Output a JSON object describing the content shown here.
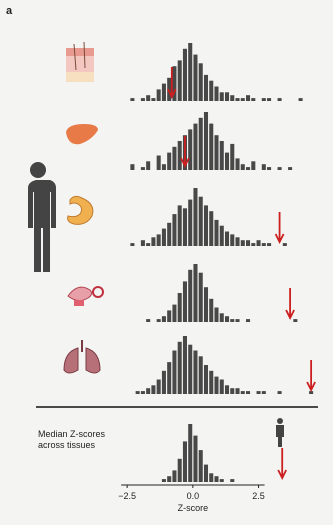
{
  "chart_data": {
    "type": "histogram",
    "panel_label": "a",
    "bins": [
      -2.8,
      -2.6,
      -2.4,
      -2.2,
      -2,
      -1.8,
      -1.6,
      -1.4,
      -1.2,
      -1,
      -0.8,
      -0.6,
      -0.4,
      -0.2,
      0,
      0.2,
      0.4,
      0.6,
      0.8,
      1,
      1.2,
      1.4,
      1.6,
      1.8,
      2,
      2.2,
      2.4,
      2.6,
      2.8,
      3,
      3.2,
      3.4,
      3.6,
      3.8,
      4,
      4.2,
      4.4,
      4.6,
      4.8
    ],
    "xlim": [
      -3,
      4.8
    ],
    "xticks": [
      {
        "value": -2.5,
        "label": "−2.5"
      },
      {
        "value": 0,
        "label": "0.0"
      },
      2.5
    ],
    "xlabel": "Z-score",
    "ylim": [
      0,
      20
    ],
    "color": "#484848",
    "marker_color": "#cc1f1f",
    "panels": [
      {
        "values": [
          0,
          0,
          1,
          0,
          1,
          2,
          1,
          4,
          6,
          8,
          12,
          14,
          18,
          20,
          16,
          13,
          9,
          7,
          5,
          3,
          3,
          2,
          1,
          1,
          2,
          1,
          0,
          1,
          1,
          0,
          1,
          0,
          0,
          0,
          1,
          0,
          0,
          0
        ],
        "marker": -0.8
      },
      {
        "values": [
          0,
          0,
          2,
          0,
          1,
          3,
          0,
          5,
          2,
          6,
          8,
          10,
          12,
          14,
          16,
          18,
          20,
          16,
          12,
          10,
          6,
          9,
          4,
          2,
          1,
          3,
          0,
          2,
          1,
          0,
          1,
          0,
          1,
          0,
          0,
          0,
          0,
          0
        ],
        "marker": -0.3
      },
      {
        "values": [
          0,
          0,
          1,
          0,
          2,
          1,
          3,
          4,
          6,
          8,
          11,
          14,
          13,
          16,
          20,
          17,
          14,
          12,
          9,
          7,
          5,
          4,
          3,
          2,
          2,
          1,
          2,
          1,
          1,
          0,
          0,
          1,
          0,
          0,
          0,
          0,
          0,
          0
        ],
        "marker": 3.3
      },
      {
        "values": [
          0,
          0,
          0,
          0,
          0,
          1,
          0,
          1,
          2,
          4,
          6,
          10,
          14,
          18,
          20,
          17,
          12,
          8,
          5,
          3,
          2,
          1,
          1,
          0,
          1,
          0,
          0,
          0,
          0,
          0,
          0,
          0,
          0,
          1,
          0,
          0,
          0,
          0
        ],
        "marker": 3.7
      },
      {
        "values": [
          0,
          0,
          0,
          1,
          1,
          2,
          3,
          5,
          8,
          11,
          15,
          18,
          20,
          17,
          15,
          13,
          10,
          8,
          6,
          5,
          3,
          2,
          2,
          1,
          1,
          0,
          1,
          1,
          0,
          0,
          1,
          0,
          0,
          0,
          0,
          0,
          1,
          0
        ],
        "marker": 4.5
      },
      {
        "values": [
          0,
          0,
          0,
          0,
          0,
          0,
          0,
          0,
          1,
          2,
          4,
          8,
          14,
          20,
          16,
          11,
          6,
          3,
          2,
          1,
          0,
          1,
          0,
          0,
          0,
          0,
          0,
          0,
          0,
          0,
          0,
          0,
          0,
          0,
          0,
          0,
          0,
          0
        ],
        "marker": 3.4,
        "label": [
          "Median Z-scores",
          "across tissues"
        ]
      }
    ]
  }
}
